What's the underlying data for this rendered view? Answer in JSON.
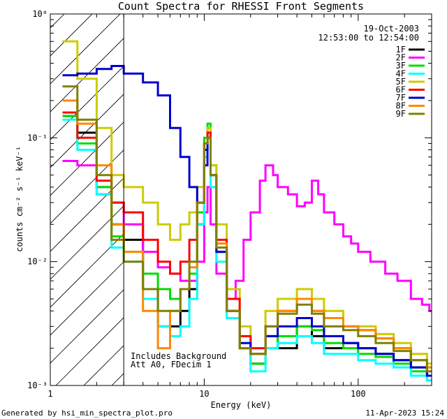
{
  "chart_data": {
    "type": "line",
    "title": "Count Spectra for RHESSI Front Segments",
    "xlabel": "Energy (keV)",
    "ylabel": "counts cm⁻² s⁻¹ keV⁻¹",
    "xscale": "log",
    "yscale": "log",
    "xlim": [
      1,
      300
    ],
    "ylim": [
      0.001,
      1
    ],
    "x_ticks": [
      {
        "value": 1,
        "label": "1"
      },
      {
        "value": 10,
        "label": "10"
      },
      {
        "value": 100,
        "label": "100"
      }
    ],
    "y_ticks": [
      {
        "value": 1,
        "label": "10⁰"
      },
      {
        "value": 0.1,
        "label": "10⁻¹"
      },
      {
        "value": 0.01,
        "label": "10⁻²"
      },
      {
        "value": 0.001,
        "label": "10⁻³"
      }
    ],
    "date": "19-Oct-2003",
    "time_range": "12:53:00 to 12:54:00",
    "annotations": [
      "Includes Background",
      "Att A0, FDecim 1"
    ],
    "shaded_region": {
      "x_range": [
        1,
        3
      ],
      "pattern": "diagonal-hatch"
    },
    "legend_position": "top-right",
    "series": [
      {
        "name": "1F",
        "color": "#000000",
        "points": [
          [
            1.2,
            0.15
          ],
          [
            1.5,
            0.11
          ],
          [
            2,
            0.04
          ],
          [
            2.5,
            0.02
          ],
          [
            3,
            0.015
          ],
          [
            4,
            0.006
          ],
          [
            5,
            0.003
          ],
          [
            6,
            0.003
          ],
          [
            7,
            0.004
          ],
          [
            8,
            0.006
          ],
          [
            9,
            0.02
          ],
          [
            10,
            0.08
          ],
          [
            10.5,
            0.12
          ],
          [
            11,
            0.05
          ],
          [
            12,
            0.012
          ],
          [
            14,
            0.004
          ],
          [
            17,
            0.002
          ],
          [
            20,
            0.0015
          ],
          [
            25,
            0.0025
          ],
          [
            30,
            0.002
          ],
          [
            40,
            0.003
          ],
          [
            50,
            0.0025
          ],
          [
            60,
            0.002
          ],
          [
            80,
            0.0022
          ],
          [
            100,
            0.002
          ],
          [
            130,
            0.0018
          ],
          [
            170,
            0.0016
          ],
          [
            220,
            0.0014
          ],
          [
            280,
            0.0012
          ]
        ]
      },
      {
        "name": "2F",
        "color": "#ff00ff",
        "points": [
          [
            1.2,
            0.065
          ],
          [
            1.5,
            0.06
          ],
          [
            2,
            0.035
          ],
          [
            2.5,
            0.03
          ],
          [
            3,
            0.02
          ],
          [
            4,
            0.012
          ],
          [
            5,
            0.009
          ],
          [
            6,
            0.008
          ],
          [
            7,
            0.007
          ],
          [
            8,
            0.007
          ],
          [
            9,
            0.01
          ],
          [
            10,
            0.025
          ],
          [
            10.5,
            0.04
          ],
          [
            11,
            0.02
          ],
          [
            12,
            0.008
          ],
          [
            14,
            0.005
          ],
          [
            16,
            0.007
          ],
          [
            18,
            0.015
          ],
          [
            20,
            0.025
          ],
          [
            23,
            0.045
          ],
          [
            25,
            0.06
          ],
          [
            28,
            0.05
          ],
          [
            30,
            0.04
          ],
          [
            35,
            0.035
          ],
          [
            40,
            0.028
          ],
          [
            45,
            0.03
          ],
          [
            50,
            0.045
          ],
          [
            55,
            0.035
          ],
          [
            60,
            0.025
          ],
          [
            70,
            0.02
          ],
          [
            80,
            0.016
          ],
          [
            90,
            0.014
          ],
          [
            100,
            0.012
          ],
          [
            120,
            0.01
          ],
          [
            150,
            0.008
          ],
          [
            180,
            0.007
          ],
          [
            220,
            0.005
          ],
          [
            260,
            0.0045
          ],
          [
            290,
            0.004
          ]
        ]
      },
      {
        "name": "3F",
        "color": "#00dd00",
        "points": [
          [
            1.2,
            0.15
          ],
          [
            1.5,
            0.09
          ],
          [
            2,
            0.04
          ],
          [
            2.5,
            0.016
          ],
          [
            3,
            0.012
          ],
          [
            4,
            0.008
          ],
          [
            5,
            0.006
          ],
          [
            6,
            0.005
          ],
          [
            7,
            0.006
          ],
          [
            8,
            0.008
          ],
          [
            9,
            0.025
          ],
          [
            10,
            0.1
          ],
          [
            10.5,
            0.13
          ],
          [
            11,
            0.06
          ],
          [
            12,
            0.012
          ],
          [
            14,
            0.004
          ],
          [
            17,
            0.002
          ],
          [
            20,
            0.0015
          ],
          [
            25,
            0.002
          ],
          [
            30,
            0.0025
          ],
          [
            40,
            0.003
          ],
          [
            50,
            0.0028
          ],
          [
            60,
            0.0022
          ],
          [
            80,
            0.002
          ],
          [
            100,
            0.0018
          ],
          [
            130,
            0.0017
          ],
          [
            170,
            0.0015
          ],
          [
            220,
            0.0013
          ],
          [
            280,
            0.0012
          ]
        ]
      },
      {
        "name": "4F",
        "color": "#00ffff",
        "points": [
          [
            1.2,
            0.14
          ],
          [
            1.5,
            0.08
          ],
          [
            2,
            0.035
          ],
          [
            2.5,
            0.013
          ],
          [
            3,
            0.01
          ],
          [
            4,
            0.005
          ],
          [
            5,
            0.003
          ],
          [
            6,
            0.0025
          ],
          [
            7,
            0.003
          ],
          [
            8,
            0.005
          ],
          [
            9,
            0.02
          ],
          [
            10,
            0.07
          ],
          [
            10.5,
            0.1
          ],
          [
            11,
            0.04
          ],
          [
            12,
            0.01
          ],
          [
            14,
            0.0035
          ],
          [
            17,
            0.002
          ],
          [
            20,
            0.0013
          ],
          [
            25,
            0.002
          ],
          [
            30,
            0.0022
          ],
          [
            40,
            0.0025
          ],
          [
            50,
            0.0022
          ],
          [
            60,
            0.0018
          ],
          [
            80,
            0.0018
          ],
          [
            100,
            0.0016
          ],
          [
            130,
            0.0015
          ],
          [
            170,
            0.0014
          ],
          [
            220,
            0.0012
          ],
          [
            280,
            0.0011
          ]
        ]
      },
      {
        "name": "5F",
        "color": "#cccc00",
        "points": [
          [
            1.2,
            0.6
          ],
          [
            1.5,
            0.3
          ],
          [
            2,
            0.12
          ],
          [
            2.5,
            0.05
          ],
          [
            3,
            0.04
          ],
          [
            4,
            0.03
          ],
          [
            5,
            0.02
          ],
          [
            6,
            0.015
          ],
          [
            7,
            0.02
          ],
          [
            8,
            0.025
          ],
          [
            9,
            0.04
          ],
          [
            10,
            0.09
          ],
          [
            10.5,
            0.12
          ],
          [
            11,
            0.06
          ],
          [
            12,
            0.02
          ],
          [
            14,
            0.006
          ],
          [
            17,
            0.003
          ],
          [
            20,
            0.002
          ],
          [
            25,
            0.004
          ],
          [
            30,
            0.005
          ],
          [
            40,
            0.006
          ],
          [
            50,
            0.005
          ],
          [
            60,
            0.004
          ],
          [
            80,
            0.003
          ],
          [
            100,
            0.003
          ],
          [
            130,
            0.0026
          ],
          [
            170,
            0.0022
          ],
          [
            220,
            0.0018
          ],
          [
            280,
            0.0015
          ]
        ]
      },
      {
        "name": "6F",
        "color": "#ff0000",
        "points": [
          [
            1.2,
            0.16
          ],
          [
            1.5,
            0.1
          ],
          [
            2,
            0.045
          ],
          [
            2.5,
            0.03
          ],
          [
            3,
            0.025
          ],
          [
            4,
            0.015
          ],
          [
            5,
            0.01
          ],
          [
            6,
            0.008
          ],
          [
            7,
            0.01
          ],
          [
            8,
            0.015
          ],
          [
            9,
            0.03
          ],
          [
            10,
            0.09
          ],
          [
            10.5,
            0.11
          ],
          [
            11,
            0.05
          ],
          [
            12,
            0.015
          ],
          [
            14,
            0.005
          ],
          [
            17,
            0.0025
          ],
          [
            20,
            0.002
          ],
          [
            25,
            0.003
          ],
          [
            30,
            0.004
          ],
          [
            40,
            0.005
          ],
          [
            50,
            0.004
          ],
          [
            60,
            0.0035
          ],
          [
            80,
            0.003
          ],
          [
            100,
            0.0028
          ],
          [
            130,
            0.0024
          ],
          [
            170,
            0.002
          ],
          [
            220,
            0.0016
          ],
          [
            280,
            0.0014
          ]
        ]
      },
      {
        "name": "7F",
        "color": "#0000cc",
        "points": [
          [
            1.2,
            0.32
          ],
          [
            1.5,
            0.33
          ],
          [
            2,
            0.36
          ],
          [
            2.5,
            0.38
          ],
          [
            3,
            0.33
          ],
          [
            4,
            0.28
          ],
          [
            5,
            0.22
          ],
          [
            6,
            0.12
          ],
          [
            7,
            0.07
          ],
          [
            8,
            0.04
          ],
          [
            9,
            0.03
          ],
          [
            10,
            0.06
          ],
          [
            10.5,
            0.1
          ],
          [
            11,
            0.05
          ],
          [
            12,
            0.012
          ],
          [
            14,
            0.004
          ],
          [
            17,
            0.0022
          ],
          [
            20,
            0.0018
          ],
          [
            25,
            0.0025
          ],
          [
            30,
            0.003
          ],
          [
            40,
            0.0035
          ],
          [
            50,
            0.003
          ],
          [
            60,
            0.0025
          ],
          [
            80,
            0.0022
          ],
          [
            100,
            0.002
          ],
          [
            130,
            0.0018
          ],
          [
            170,
            0.0016
          ],
          [
            220,
            0.0014
          ],
          [
            280,
            0.0012
          ]
        ]
      },
      {
        "name": "8F",
        "color": "#ff8800",
        "points": [
          [
            1.2,
            0.2
          ],
          [
            1.5,
            0.13
          ],
          [
            2,
            0.06
          ],
          [
            2.5,
            0.02
          ],
          [
            3,
            0.012
          ],
          [
            4,
            0.004
          ],
          [
            5,
            0.002
          ],
          [
            6,
            0.004
          ],
          [
            7,
            0.006
          ],
          [
            8,
            0.009
          ],
          [
            9,
            0.03
          ],
          [
            10,
            0.09
          ],
          [
            10.5,
            0.1
          ],
          [
            11,
            0.05
          ],
          [
            12,
            0.014
          ],
          [
            14,
            0.004
          ],
          [
            17,
            0.002
          ],
          [
            20,
            0.0018
          ],
          [
            25,
            0.003
          ],
          [
            30,
            0.004
          ],
          [
            40,
            0.005
          ],
          [
            50,
            0.004
          ],
          [
            60,
            0.0035
          ],
          [
            80,
            0.003
          ],
          [
            100,
            0.0028
          ],
          [
            130,
            0.0024
          ],
          [
            170,
            0.002
          ],
          [
            220,
            0.0016
          ],
          [
            280,
            0.0014
          ]
        ]
      },
      {
        "name": "9F",
        "color": "#808000",
        "points": [
          [
            1.2,
            0.26
          ],
          [
            1.5,
            0.14
          ],
          [
            2,
            0.05
          ],
          [
            2.5,
            0.015
          ],
          [
            3,
            0.01
          ],
          [
            4,
            0.006
          ],
          [
            5,
            0.004
          ],
          [
            6,
            0.004
          ],
          [
            7,
            0.006
          ],
          [
            8,
            0.01
          ],
          [
            9,
            0.03
          ],
          [
            10,
            0.09
          ],
          [
            10.5,
            0.1
          ],
          [
            11,
            0.05
          ],
          [
            12,
            0.013
          ],
          [
            14,
            0.004
          ],
          [
            17,
            0.002
          ],
          [
            20,
            0.0018
          ],
          [
            25,
            0.003
          ],
          [
            30,
            0.0038
          ],
          [
            40,
            0.0045
          ],
          [
            50,
            0.0038
          ],
          [
            60,
            0.003
          ],
          [
            80,
            0.0028
          ],
          [
            100,
            0.0025
          ],
          [
            130,
            0.0022
          ],
          [
            170,
            0.0019
          ],
          [
            220,
            0.0016
          ],
          [
            280,
            0.0013
          ]
        ]
      }
    ]
  },
  "footer": {
    "generated_by": "Generated by hsi_min_spectra_plot.pro",
    "timestamp": "11-Apr-2023 15:24"
  }
}
